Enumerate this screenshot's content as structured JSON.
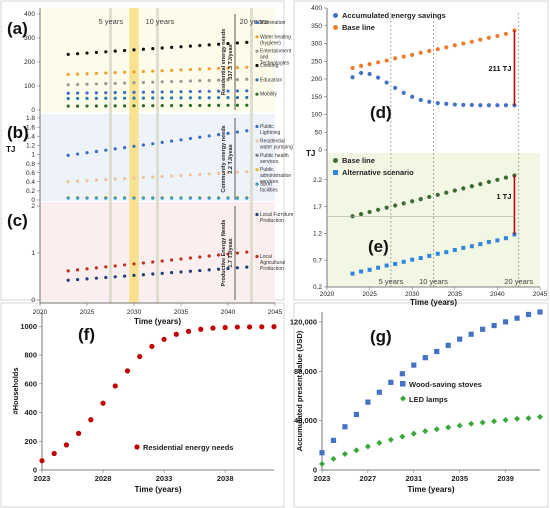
{
  "chart_data": [
    {
      "id": "left",
      "type": "scatter",
      "xlabel": "Time (years)",
      "ylabel": "TJ",
      "xlim": [
        2020,
        2045
      ],
      "xticks": [
        "2020",
        "2025",
        "2030",
        "2035",
        "2040",
        "2045"
      ],
      "markers": [
        {
          "x": 2027.5,
          "label": "5 years"
        },
        {
          "x": 2032.5,
          "label": "10 years"
        },
        {
          "x": 2042.5,
          "label": "20 years"
        }
      ],
      "highlight_year": 2030,
      "subpanels": [
        {
          "label": "(a)",
          "bg": "#fdfbea",
          "ylim": [
            0,
            400
          ],
          "yticks": [
            "0",
            "100",
            "200",
            "300",
            "400"
          ],
          "annotation": [
            "Residential energy needs",
            "337.3 TJ/yeas"
          ],
          "series": [
            {
              "name": "Illumination",
              "color": "#3a6fc4",
              "start": 70,
              "end": 80
            },
            {
              "name": "Water heating (hygiene)",
              "color": "#f0a030",
              "start": 148,
              "end": 178
            },
            {
              "name": "Entertainment and Technologies",
              "color": "#9a9a9a",
              "start": 105,
              "end": 128
            },
            {
              "name": "Cooking",
              "color": "#111111",
              "start": 232,
              "end": 282
            },
            {
              "name": "Education",
              "color": "#2a7ab0",
              "start": 48,
              "end": 52
            },
            {
              "name": "Mobility",
              "color": "#2e6b2e",
              "start": 16,
              "end": 20
            }
          ]
        },
        {
          "label": "(b)",
          "bg": "#eef3fa",
          "ylim": [
            0,
            1.8
          ],
          "yticks": [
            "0",
            "0.2",
            "0.4",
            "0.6",
            "0.8",
            "1",
            "1.2",
            "1.4",
            "1.6",
            "1.8"
          ],
          "annotation": [
            "Community energy needs",
            "2.2 TJ/yeas"
          ],
          "series": [
            {
              "name": "Public Lightning",
              "color": "#3a6fc4",
              "start": 0.98,
              "end": 1.52
            },
            {
              "name": "Residential water pumping",
              "color": "#f0c39a",
              "start": 0.4,
              "end": 0.62
            },
            {
              "name": "Public health services",
              "color": "#7a7a7a",
              "start": 0.045,
              "end": 0.045
            },
            {
              "name": "Public administration services",
              "color": "#e8c020",
              "start": 0.055,
              "end": 0.055
            },
            {
              "name": "Sport facilities",
              "color": "#3a9ad0",
              "start": 0.04,
              "end": 0.04
            }
          ]
        },
        {
          "label": "(c)",
          "bg": "#fbeeee",
          "ylim": [
            0,
            2
          ],
          "yticks": [
            "0",
            "1",
            "2"
          ],
          "annotation": [
            "Productive Energy Needs",
            "1.7 TJ/yeas"
          ],
          "series": [
            {
              "name": "Local Furniture Production",
              "color": "#1f3e7a",
              "start": 0.42,
              "end": 0.7
            },
            {
              "name": "Local Agricultural Production",
              "color": "#c03020",
              "start": 0.62,
              "end": 1.02
            }
          ]
        }
      ]
    },
    {
      "id": "right",
      "type": "scatter",
      "xlabel": "Time (years)",
      "ylabel": "TJ",
      "xlim": [
        2020,
        2045
      ],
      "xticks": [
        "2020",
        "2025",
        "2030",
        "2035",
        "2040",
        "2045"
      ],
      "markers": [
        {
          "x": 2027.5,
          "label": "5 years"
        },
        {
          "x": 2032.5,
          "label": "10 years"
        },
        {
          "x": 2042.5,
          "label": "20 years"
        }
      ],
      "subpanels": [
        {
          "label": "(d)",
          "ylim": [
            0,
            400
          ],
          "yticks": [
            "0",
            "50",
            "100",
            "150",
            "200",
            "250",
            "300",
            "350",
            "400"
          ],
          "difference_label": "211 TJ",
          "series": [
            {
              "name": "Accumulated energy savings",
              "color": "#4472c4",
              "x": [
                2023,
                2024,
                2025,
                2026,
                2027,
                2028,
                2029,
                2030,
                2031,
                2032,
                2033,
                2034,
                2035,
                2036,
                2037,
                2038,
                2039,
                2040,
                2041,
                2042
              ],
              "values": [
                205,
                217,
                214,
                204,
                190,
                175,
                161,
                150,
                141,
                136,
                132,
                130,
                128,
                127,
                127,
                126,
                126,
                126,
                126,
                126
              ]
            },
            {
              "name": "Base line",
              "color": "#ed7d31",
              "x": [
                2023,
                2024,
                2025,
                2026,
                2027,
                2028,
                2029,
                2030,
                2031,
                2032,
                2033,
                2034,
                2035,
                2036,
                2037,
                2038,
                2039,
                2040,
                2041,
                2042
              ],
              "values": [
                231,
                237,
                242,
                247,
                252,
                258,
                263,
                268,
                274,
                279,
                284,
                289,
                295,
                300,
                305,
                311,
                316,
                321,
                327,
                337
              ]
            }
          ]
        },
        {
          "label": "(e)",
          "ylim": [
            0.2,
            2.7
          ],
          "yticks": [
            "0.2",
            "0.7",
            "1.2",
            "1.7",
            "2.2"
          ],
          "difference_label": "1 TJ",
          "series": [
            {
              "name": "Base line",
              "color": "#3d6b35",
              "x": [
                2023,
                2024,
                2025,
                2026,
                2027,
                2028,
                2029,
                2030,
                2031,
                2032,
                2033,
                2034,
                2035,
                2036,
                2037,
                2038,
                2039,
                2040,
                2041,
                2042
              ],
              "values": [
                1.52,
                1.56,
                1.6,
                1.64,
                1.68,
                1.72,
                1.76,
                1.8,
                1.84,
                1.88,
                1.92,
                1.96,
                2.0,
                2.04,
                2.08,
                2.12,
                2.16,
                2.2,
                2.24,
                2.28
              ]
            },
            {
              "name": "Alternative scenario",
              "color": "#2e86de",
              "x": [
                2023,
                2024,
                2025,
                2026,
                2027,
                2028,
                2029,
                2030,
                2031,
                2032,
                2033,
                2034,
                2035,
                2036,
                2037,
                2038,
                2039,
                2040,
                2041,
                2042
              ],
              "values": [
                0.45,
                0.49,
                0.52,
                0.56,
                0.6,
                0.63,
                0.67,
                0.71,
                0.74,
                0.78,
                0.82,
                0.85,
                0.89,
                0.93,
                0.96,
                1.0,
                1.04,
                1.07,
                1.11,
                1.18
              ]
            }
          ]
        }
      ]
    },
    {
      "id": "f",
      "label": "(f)",
      "type": "scatter",
      "xlabel": "Time (years)",
      "ylabel": "#Households",
      "xlim": [
        2023,
        2042
      ],
      "ylim": [
        0,
        1100
      ],
      "xticks": [
        "2023",
        "2028",
        "2033",
        "2038"
      ],
      "yticks": [
        "0",
        "200",
        "400",
        "600",
        "800",
        "1000"
      ],
      "series": [
        {
          "name": "Residential energy needs",
          "color": "#c00000",
          "x": [
            2023,
            2024,
            2025,
            2026,
            2027,
            2028,
            2029,
            2030,
            2031,
            2032,
            2033,
            2034,
            2035,
            2036,
            2037,
            2038,
            2039,
            2040,
            2041,
            2042
          ],
          "values": [
            65,
            115,
            175,
            255,
            350,
            465,
            585,
            690,
            790,
            860,
            910,
            945,
            965,
            980,
            988,
            992,
            995,
            996,
            997,
            998
          ]
        }
      ]
    },
    {
      "id": "g",
      "label": "(g)",
      "type": "scatter",
      "xlabel": "Time (years)",
      "ylabel": "Accumulated present value (USD)",
      "xlim": [
        2023,
        2042
      ],
      "ylim": [
        0,
        128000
      ],
      "xticks": [
        "2023",
        "2027",
        "2031",
        "2035",
        "2039"
      ],
      "yticks": [
        "0",
        "40,000",
        "80,000",
        "120,000"
      ],
      "series": [
        {
          "name": "Wood-saving stoves",
          "color": "#4472c4",
          "marker": "square",
          "x": [
            2023,
            2024,
            2025,
            2026,
            2027,
            2028,
            2029,
            2030,
            2031,
            2032,
            2033,
            2034,
            2035,
            2036,
            2037,
            2038,
            2039,
            2040,
            2041,
            2042
          ],
          "values": [
            14000,
            24000,
            35000,
            45000,
            55000,
            63000,
            71000,
            78000,
            85000,
            91000,
            96000,
            101000,
            106000,
            110000,
            114000,
            117000,
            120000,
            123000,
            126000,
            128000
          ]
        },
        {
          "name": "LED lamps",
          "color": "#38a838",
          "marker": "diamond",
          "x": [
            2023,
            2024,
            2025,
            2026,
            2027,
            2028,
            2029,
            2030,
            2031,
            2032,
            2033,
            2034,
            2035,
            2036,
            2037,
            2038,
            2039,
            2040,
            2041,
            2042
          ],
          "values": [
            5000,
            9000,
            13000,
            16000,
            19000,
            22000,
            24500,
            27000,
            29500,
            31500,
            33000,
            34500,
            36000,
            37500,
            38500,
            39500,
            40500,
            41500,
            42000,
            43000
          ]
        }
      ]
    }
  ]
}
